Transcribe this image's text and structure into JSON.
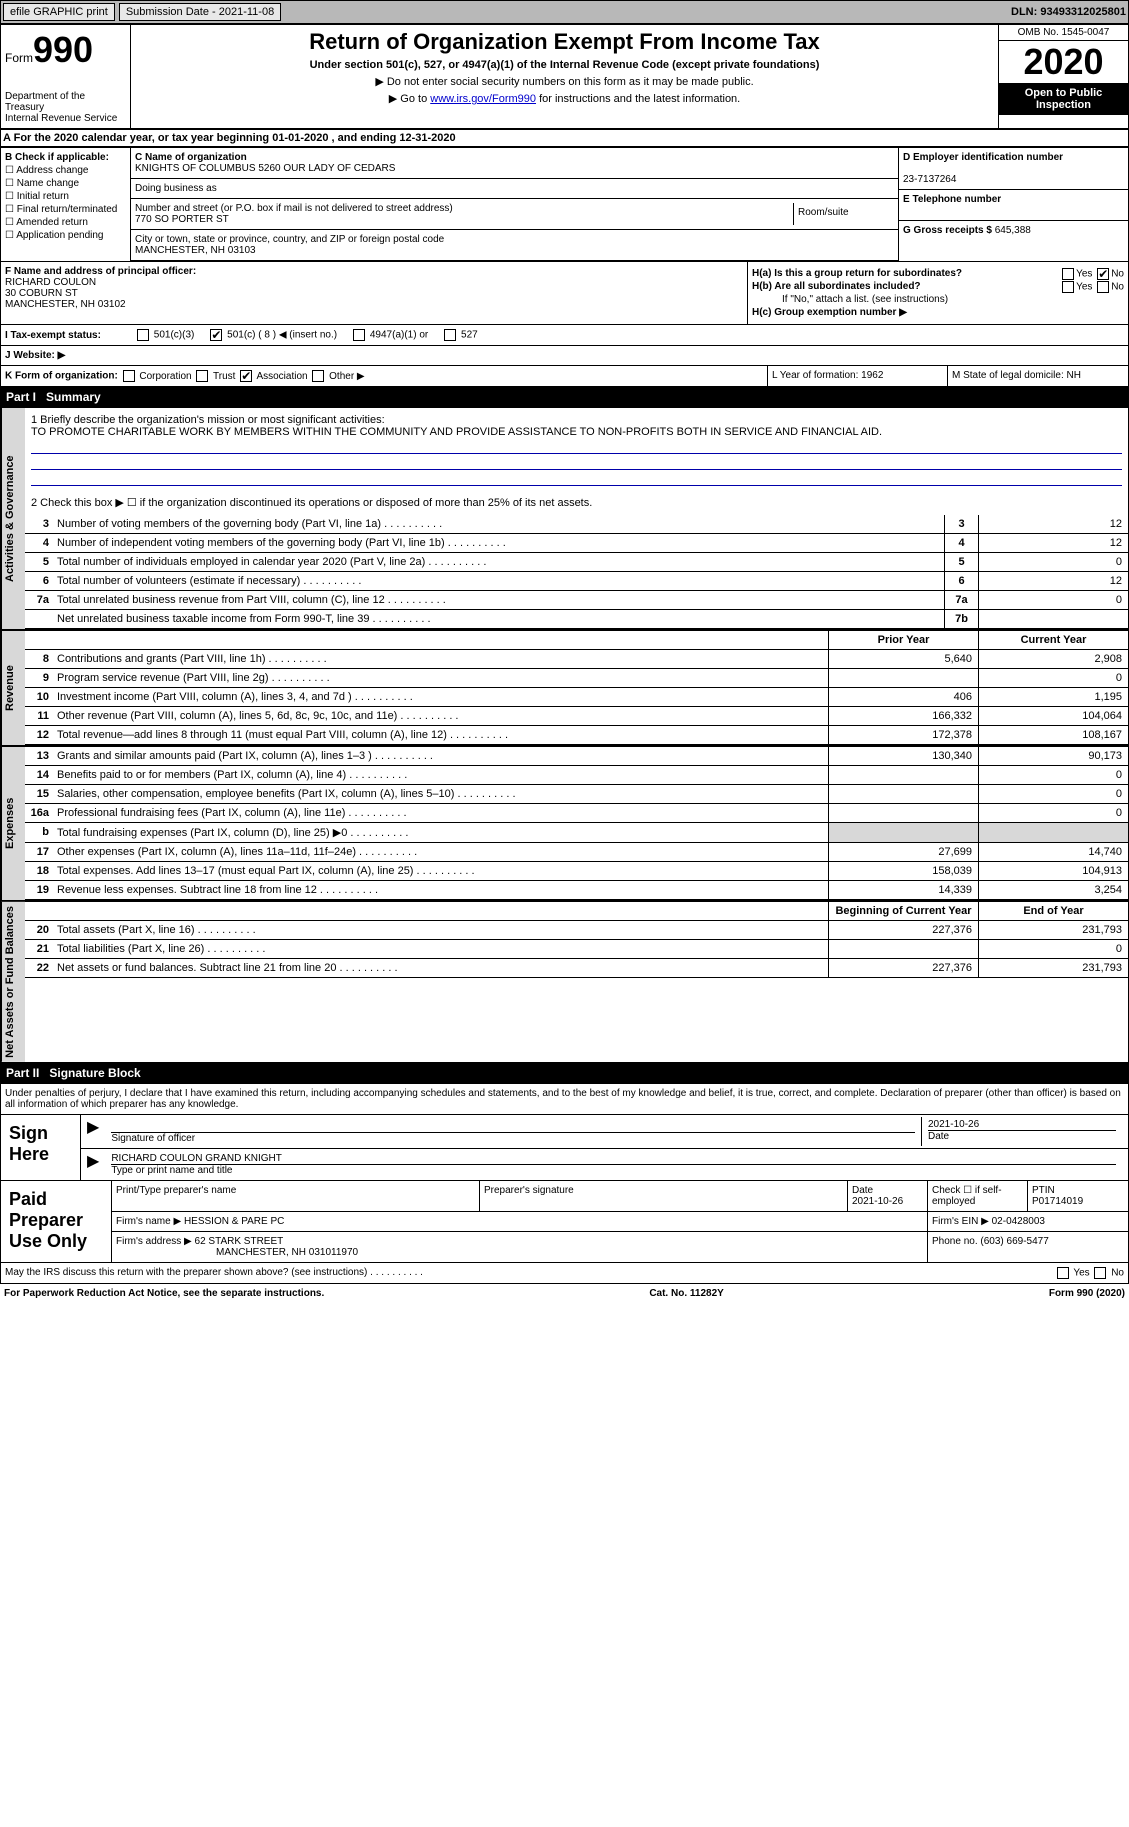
{
  "topbar": {
    "efile_btn": "efile GRAPHIC print",
    "sub_label": "Submission Date - 2021-11-08",
    "dln": "DLN: 93493312025801"
  },
  "header": {
    "form_word": "Form",
    "form_num": "990",
    "title": "Return of Organization Exempt From Income Tax",
    "subtitle": "Under section 501(c), 527, or 4947(a)(1) of the Internal Revenue Code (except private foundations)",
    "note1": "▶ Do not enter social security numbers on this form as it may be made public.",
    "note2_pre": "▶ Go to ",
    "note2_link": "www.irs.gov/Form990",
    "note2_post": " for instructions and the latest information.",
    "dept": "Department of the Treasury\nInternal Revenue Service",
    "omb": "OMB No. 1545-0047",
    "tax_year": "2020",
    "open": "Open to Public Inspection"
  },
  "period": {
    "text": "For the 2020 calendar year, or tax year beginning 01-01-2020   , and ending 12-31-2020"
  },
  "boxB": {
    "title": "B Check if applicable:",
    "opts": [
      "Address change",
      "Name change",
      "Initial return",
      "Final return/terminated",
      "Amended return",
      "Application pending"
    ]
  },
  "boxC": {
    "name_label": "C Name of organization",
    "name": "KNIGHTS OF COLUMBUS 5260 OUR LADY OF CEDARS",
    "dba_label": "Doing business as",
    "dba": "",
    "addr_label": "Number and street (or P.O. box if mail is not delivered to street address)",
    "room_label": "Room/suite",
    "addr": "770 SO PORTER ST",
    "city_label": "City or town, state or province, country, and ZIP or foreign postal code",
    "city": "MANCHESTER, NH  03103"
  },
  "boxD": {
    "label": "D Employer identification number",
    "ein": "23-7137264"
  },
  "boxE": {
    "label": "E Telephone number",
    "val": ""
  },
  "boxG": {
    "label": "G Gross receipts $",
    "val": "645,388"
  },
  "boxF": {
    "label": "F  Name and address of principal officer:",
    "name": "RICHARD COULON",
    "addr1": "30 COBURN ST",
    "addr2": "MANCHESTER, NH  03102"
  },
  "boxH": {
    "a_label": "H(a)  Is this a group return for subordinates?",
    "a_yes": "Yes",
    "a_no": "No",
    "b_label": "H(b)  Are all subordinates included?",
    "b_yes": "Yes",
    "b_no": "No",
    "b_note": "If \"No,\" attach a list. (see instructions)",
    "c_label": "H(c)  Group exemption number ▶"
  },
  "status": {
    "i_label": "I   Tax-exempt status:",
    "o1": "501(c)(3)",
    "o2": "501(c) ( 8 ) ◀ (insert no.)",
    "o3": "4947(a)(1) or",
    "o4": "527"
  },
  "website": {
    "label": "J   Website: ▶"
  },
  "korg": {
    "label": "K Form of organization:",
    "o1": "Corporation",
    "o2": "Trust",
    "o3": "Association",
    "o4": "Other ▶"
  },
  "lm": {
    "l": "L Year of formation: 1962",
    "m": "M State of legal domicile: NH"
  },
  "part1": {
    "label": "Part I",
    "title": "Summary"
  },
  "mission": {
    "q1": "1  Briefly describe the organization's mission or most significant activities:",
    "text": "TO PROMOTE CHARITABLE WORK BY MEMBERS WITHIN THE COMMUNITY AND PROVIDE ASSISTANCE TO NON-PROFITS BOTH IN SERVICE AND FINANCIAL AID.",
    "q2": "2   Check this box ▶ ☐  if the organization discontinued its operations or disposed of more than 25% of its net assets."
  },
  "gov_lines": [
    {
      "n": "3",
      "t": "Number of voting members of the governing body (Part VI, line 1a)",
      "box": "3",
      "v": "12"
    },
    {
      "n": "4",
      "t": "Number of independent voting members of the governing body (Part VI, line 1b)",
      "box": "4",
      "v": "12"
    },
    {
      "n": "5",
      "t": "Total number of individuals employed in calendar year 2020 (Part V, line 2a)",
      "box": "5",
      "v": "0"
    },
    {
      "n": "6",
      "t": "Total number of volunteers (estimate if necessary)",
      "box": "6",
      "v": "12"
    },
    {
      "n": "7a",
      "t": "Total unrelated business revenue from Part VIII, column (C), line 12",
      "box": "7a",
      "v": "0"
    },
    {
      "n": "",
      "t": "Net unrelated business taxable income from Form 990-T, line 39",
      "box": "7b",
      "v": ""
    }
  ],
  "col_headers": {
    "prior": "Prior Year",
    "current": "Current Year"
  },
  "revenue_lines": [
    {
      "n": "8",
      "t": "Contributions and grants (Part VIII, line 1h)",
      "p": "5,640",
      "c": "2,908"
    },
    {
      "n": "9",
      "t": "Program service revenue (Part VIII, line 2g)",
      "p": "",
      "c": "0"
    },
    {
      "n": "10",
      "t": "Investment income (Part VIII, column (A), lines 3, 4, and 7d )",
      "p": "406",
      "c": "1,195"
    },
    {
      "n": "11",
      "t": "Other revenue (Part VIII, column (A), lines 5, 6d, 8c, 9c, 10c, and 11e)",
      "p": "166,332",
      "c": "104,064"
    },
    {
      "n": "12",
      "t": "Total revenue—add lines 8 through 11 (must equal Part VIII, column (A), line 12)",
      "p": "172,378",
      "c": "108,167"
    }
  ],
  "expense_lines": [
    {
      "n": "13",
      "t": "Grants and similar amounts paid (Part IX, column (A), lines 1–3 )",
      "p": "130,340",
      "c": "90,173"
    },
    {
      "n": "14",
      "t": "Benefits paid to or for members (Part IX, column (A), line 4)",
      "p": "",
      "c": "0"
    },
    {
      "n": "15",
      "t": "Salaries, other compensation, employee benefits (Part IX, column (A), lines 5–10)",
      "p": "",
      "c": "0"
    },
    {
      "n": "16a",
      "t": "Professional fundraising fees (Part IX, column (A), line 11e)",
      "p": "",
      "c": "0"
    },
    {
      "n": "b",
      "t": "Total fundraising expenses (Part IX, column (D), line 25) ▶0",
      "p": "SHADE",
      "c": "SHADE"
    },
    {
      "n": "17",
      "t": "Other expenses (Part IX, column (A), lines 11a–11d, 11f–24e)",
      "p": "27,699",
      "c": "14,740"
    },
    {
      "n": "18",
      "t": "Total expenses. Add lines 13–17 (must equal Part IX, column (A), line 25)",
      "p": "158,039",
      "c": "104,913"
    },
    {
      "n": "19",
      "t": "Revenue less expenses. Subtract line 18 from line 12",
      "p": "14,339",
      "c": "3,254"
    }
  ],
  "na_headers": {
    "beg": "Beginning of Current Year",
    "end": "End of Year"
  },
  "na_lines": [
    {
      "n": "20",
      "t": "Total assets (Part X, line 16)",
      "p": "227,376",
      "c": "231,793"
    },
    {
      "n": "21",
      "t": "Total liabilities (Part X, line 26)",
      "p": "",
      "c": "0"
    },
    {
      "n": "22",
      "t": "Net assets or fund balances. Subtract line 21 from line 20",
      "p": "227,376",
      "c": "231,793"
    }
  ],
  "side_labels": {
    "gov": "Activities & Governance",
    "rev": "Revenue",
    "exp": "Expenses",
    "na": "Net Assets or Fund Balances"
  },
  "part2": {
    "label": "Part II",
    "title": "Signature Block"
  },
  "sig": {
    "decl": "Under penalties of perjury, I declare that I have examined this return, including accompanying schedules and statements, and to the best of my knowledge and belief, it is true, correct, and complete. Declaration of preparer (other than officer) is based on all information of which preparer has any knowledge.",
    "sign_here": "Sign Here",
    "sig_officer": "Signature of officer",
    "date": "Date",
    "date_val": "2021-10-26",
    "name_title": "RICHARD COULON  GRAND KNIGHT",
    "name_title_label": "Type or print name and title"
  },
  "prep": {
    "label": "Paid Preparer Use Only",
    "h_name": "Print/Type preparer's name",
    "h_sig": "Preparer's signature",
    "h_date": "Date",
    "date_val": "2021-10-26",
    "h_check": "Check ☐ if self-employed",
    "h_ptin": "PTIN",
    "ptin": "P01714019",
    "firm_name_l": "Firm's name    ▶",
    "firm_name": "HESSION & PARE PC",
    "firm_ein_l": "Firm's EIN ▶",
    "firm_ein": "02-0428003",
    "firm_addr_l": "Firm's address ▶",
    "firm_addr": "62 STARK STREET",
    "firm_city": "MANCHESTER, NH  031011970",
    "phone_l": "Phone no.",
    "phone": "(603) 669-5477"
  },
  "discuss": {
    "q": "May the IRS discuss this return with the preparer shown above? (see instructions)",
    "yes": "Yes",
    "no": "No"
  },
  "footer": {
    "pra": "For Paperwork Reduction Act Notice, see the separate instructions.",
    "cat": "Cat. No. 11282Y",
    "form": "Form 990 (2020)"
  }
}
